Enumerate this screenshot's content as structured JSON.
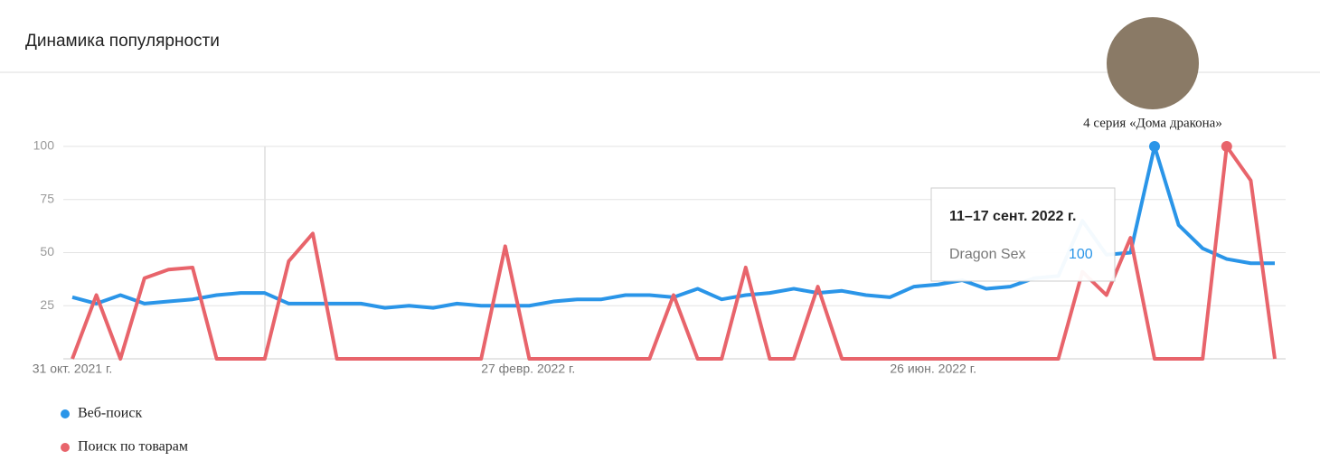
{
  "chart_data": {
    "type": "line",
    "title": "Динамика популярности",
    "categories": [
      "31 окт. 2021 г.",
      null,
      null,
      null,
      null,
      null,
      null,
      null,
      null,
      null,
      null,
      null,
      null,
      null,
      null,
      null,
      null,
      "27 февр. 2022 г.",
      null,
      null,
      null,
      null,
      null,
      null,
      null,
      null,
      null,
      null,
      null,
      null,
      null,
      null,
      null,
      null,
      "26 июн. 2022 г.",
      null,
      null,
      null,
      null,
      null,
      null,
      null,
      null,
      null,
      null,
      null,
      null,
      null,
      null,
      null,
      null
    ],
    "series": [
      {
        "name": "Веб-поиск",
        "color": "#2a95e8",
        "values": [
          29,
          26,
          30,
          26,
          27,
          28,
          30,
          31,
          31,
          26,
          26,
          26,
          26,
          24,
          25,
          24,
          26,
          25,
          25,
          25,
          27,
          28,
          28,
          30,
          30,
          29,
          33,
          28,
          30,
          31,
          33,
          31,
          32,
          30,
          29,
          34,
          35,
          37,
          33,
          34,
          38,
          39,
          65,
          49,
          50,
          100,
          63,
          52,
          47,
          45,
          45
        ]
      },
      {
        "name": "Поиск по товарам",
        "color": "#e8646b",
        "values": [
          0,
          30,
          0,
          38,
          42,
          43,
          0,
          0,
          0,
          46,
          59,
          0,
          0,
          0,
          0,
          0,
          0,
          0,
          53,
          0,
          0,
          0,
          0,
          0,
          0,
          30,
          0,
          0,
          43,
          0,
          0,
          34,
          0,
          0,
          0,
          0,
          0,
          0,
          0,
          0,
          0,
          0,
          41,
          30,
          57,
          0,
          0,
          0,
          100,
          84,
          0
        ]
      }
    ],
    "ylim": [
      0,
      100
    ],
    "yticks": [
      25,
      50,
      75,
      100
    ],
    "grid": true,
    "annotation": "4 серия «Дома дракона»",
    "tooltip": {
      "title": "11–17 сент. 2022 г.",
      "label": "Dragon Sex",
      "value": 100
    }
  }
}
